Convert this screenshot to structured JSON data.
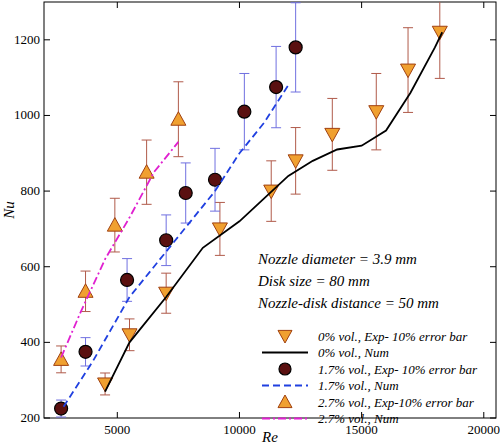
{
  "chart_data": {
    "type": "scatter",
    "x_label": "Re",
    "y_label": "Nu",
    "xlim": [
      2000,
      20500
    ],
    "ylim": [
      200,
      1300
    ],
    "xticks": [
      5000,
      10000,
      15000,
      20000
    ],
    "yticks": [
      200,
      400,
      600,
      800,
      1000,
      1200
    ],
    "grid": false,
    "legend": "lower right",
    "annotations": [
      "Nozzle diameter = 3.9 mm",
      "Disk size = 80 mm",
      "Nozzle-disk distance = 50 mm"
    ],
    "series": [
      {
        "name": "0% vol., Exp- 10% error bar",
        "type": "scatter",
        "color": "#f0a030",
        "marker": "triangle-down",
        "x": [
          4500,
          5500,
          7000,
          9200,
          11300,
          12300,
          13800,
          15600,
          16900,
          18200
        ],
        "values": [
          290,
          420,
          530,
          700,
          800,
          880,
          950,
          1010,
          1120,
          1220
        ],
        "errors": [
          29,
          42,
          53,
          70,
          80,
          88,
          95,
          101,
          112,
          122
        ]
      },
      {
        "name": "0% vol., Num",
        "type": "line",
        "color": "#000000",
        "line_style": "solid",
        "x": [
          4500,
          5500,
          7000,
          8500,
          10000,
          11000,
          12000,
          13000,
          14000,
          15000,
          16000,
          17000,
          18000,
          18300
        ],
        "values": [
          270,
          400,
          520,
          650,
          720,
          780,
          840,
          880,
          910,
          920,
          960,
          1060,
          1180,
          1220
        ]
      },
      {
        "name": "1.7% vol., Exp- 10% error bar",
        "type": "scatter",
        "color": "#5a1010",
        "marker": "circle",
        "x": [
          2700,
          3700,
          5400,
          7000,
          7800,
          9000,
          10200,
          11500,
          12300
        ],
        "values": [
          225,
          375,
          565,
          670,
          795,
          830,
          1010,
          1075,
          1180
        ],
        "errors": [
          22.5,
          37.5,
          56.5,
          67,
          79.5,
          83,
          101,
          107.5,
          118
        ]
      },
      {
        "name": "1.7% vol., Num",
        "type": "line",
        "color": "#2040e0",
        "line_style": "dashed",
        "x": [
          2800,
          4000,
          5500,
          7000,
          8000,
          9000,
          10000,
          11000,
          12000
        ],
        "values": [
          230,
          350,
          520,
          640,
          720,
          800,
          900,
          980,
          1080
        ]
      },
      {
        "name": "2.7% vol., Exp-10% error bar",
        "type": "scatter",
        "color": "#f0a030",
        "marker": "triangle-up",
        "x": [
          2700,
          3700,
          4900,
          6200,
          7500
        ],
        "values": [
          355,
          535,
          710,
          850,
          990
        ],
        "errors": [
          35.5,
          53.5,
          71,
          85,
          99
        ]
      },
      {
        "name": "2.7% vol., Num",
        "type": "line",
        "color": "#e020d0",
        "line_style": "dashdot",
        "x": [
          2700,
          3500,
          4500,
          5500,
          6500,
          7500
        ],
        "values": [
          360,
          480,
          620,
          730,
          850,
          930
        ]
      }
    ]
  }
}
